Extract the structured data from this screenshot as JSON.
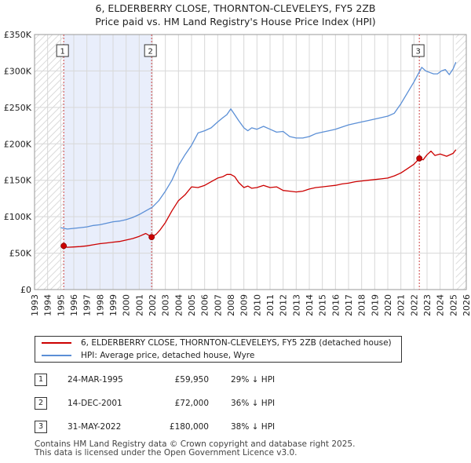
{
  "title_line1": "6, ELDERBERRY CLOSE, THORNTON-CLEVELEYS, FY5 2ZB",
  "title_line2": "Price paid vs. HM Land Registry's House Price Index (HPI)",
  "colors": {
    "property": "#cc0000",
    "hpi": "#5b8fd6",
    "hatch": "#cfcfcf",
    "shade": "#e9eefb",
    "grid": "#d8d8d8",
    "marker_line": "#cc4444"
  },
  "legend": {
    "property_label": "6, ELDERBERRY CLOSE, THORNTON-CLEVELEYS, FY5 2ZB (detached house)",
    "hpi_label": "HPI: Average price, detached house, Wyre"
  },
  "transactions": [
    {
      "num": "1",
      "date": "24-MAR-1995",
      "price": "£59,950",
      "delta": "29% ↓ HPI"
    },
    {
      "num": "2",
      "date": "14-DEC-2001",
      "price": "£72,000",
      "delta": "36% ↓ HPI"
    },
    {
      "num": "3",
      "date": "31-MAY-2022",
      "price": "£180,000",
      "delta": "38% ↓ HPI"
    }
  ],
  "footer_line1": "Contains HM Land Registry data © Crown copyright and database right 2025.",
  "footer_line2": "This data is licensed under the Open Government Licence v3.0.",
  "chart_data": {
    "type": "line",
    "title": "6, ELDERBERRY CLOSE, THORNTON-CLEVELEYS, FY5 2ZB — Price paid vs. HM Land Registry's House Price Index (HPI)",
    "xlabel": "",
    "ylabel": "",
    "xlim": [
      1993,
      2026
    ],
    "ylim": [
      0,
      350000
    ],
    "x_ticks": [
      1993,
      1994,
      1995,
      1996,
      1997,
      1998,
      1999,
      2000,
      2001,
      2002,
      2003,
      2004,
      2005,
      2006,
      2007,
      2008,
      2009,
      2010,
      2011,
      2012,
      2013,
      2014,
      2015,
      2016,
      2017,
      2018,
      2019,
      2020,
      2021,
      2022,
      2023,
      2024,
      2025,
      2026
    ],
    "y_ticks": [
      {
        "value": 0,
        "label": "£0"
      },
      {
        "value": 50000,
        "label": "£50K"
      },
      {
        "value": 100000,
        "label": "£100K"
      },
      {
        "value": 150000,
        "label": "£150K"
      },
      {
        "value": 200000,
        "label": "£200K"
      },
      {
        "value": 250000,
        "label": "£250K"
      },
      {
        "value": 300000,
        "label": "£300K"
      },
      {
        "value": 350000,
        "label": "£350K"
      }
    ],
    "hatched_ranges": [
      [
        1993,
        1995.23
      ],
      [
        2025.2,
        2026
      ]
    ],
    "shaded_ranges": [
      [
        1995.23,
        2001.95
      ]
    ],
    "series": [
      {
        "name": "6, ELDERBERRY CLOSE, THORNTON-CLEVELEYS, FY5 2ZB (detached house)",
        "color": "#cc0000",
        "x": [
          1995.23,
          1995.5,
          1996,
          1996.5,
          1997,
          1997.5,
          1998,
          1998.5,
          1999,
          1999.5,
          2000,
          2000.5,
          2001,
          2001.5,
          2001.95,
          2002.3,
          2002.6,
          2003,
          2003.5,
          2004,
          2004.5,
          2005,
          2005.5,
          2006,
          2006.5,
          2007,
          2007.4,
          2007.7,
          2008,
          2008.3,
          2008.6,
          2009,
          2009.3,
          2009.6,
          2010,
          2010.5,
          2011,
          2011.5,
          2012,
          2012.5,
          2013,
          2013.5,
          2014,
          2014.5,
          2015,
          2015.5,
          2016,
          2016.5,
          2017,
          2017.5,
          2018,
          2018.5,
          2019,
          2019.5,
          2020,
          2020.5,
          2021,
          2021.5,
          2022,
          2022.41,
          2022.7,
          2023,
          2023.3,
          2023.6,
          2024,
          2024.5,
          2025,
          2025.2
        ],
        "values": [
          59950,
          58000,
          58500,
          59000,
          60000,
          61500,
          63000,
          64000,
          65000,
          66000,
          68000,
          70000,
          73000,
          77000,
          72000,
          76000,
          82000,
          92000,
          108000,
          122000,
          130000,
          141000,
          140000,
          143000,
          148000,
          153000,
          155000,
          158000,
          158000,
          155000,
          147000,
          140000,
          142000,
          139000,
          140000,
          143000,
          140000,
          141000,
          136000,
          135000,
          134000,
          135000,
          138000,
          140000,
          141000,
          142000,
          143000,
          145000,
          146000,
          148000,
          149000,
          150000,
          151000,
          152000,
          153000,
          156000,
          160000,
          166000,
          172000,
          180000,
          178000,
          185000,
          190000,
          184000,
          186000,
          183000,
          187000,
          192000
        ]
      },
      {
        "name": "HPI: Average price, detached house, Wyre",
        "color": "#5b8fd6",
        "x": [
          1995,
          1995.5,
          1996,
          1996.5,
          1997,
          1997.5,
          1998,
          1998.5,
          1999,
          1999.5,
          2000,
          2000.5,
          2001,
          2001.5,
          2002,
          2002.5,
          2003,
          2003.5,
          2004,
          2004.5,
          2005,
          2005.5,
          2006,
          2006.5,
          2007,
          2007.4,
          2007.7,
          2008,
          2008.3,
          2008.6,
          2009,
          2009.3,
          2009.6,
          2010,
          2010.5,
          2011,
          2011.5,
          2012,
          2012.5,
          2013,
          2013.5,
          2014,
          2014.5,
          2015,
          2015.5,
          2016,
          2016.5,
          2017,
          2017.5,
          2018,
          2018.5,
          2019,
          2019.5,
          2020,
          2020.5,
          2021,
          2021.5,
          2022,
          2022.3,
          2022.6,
          2022.9,
          2023.2,
          2023.5,
          2023.8,
          2024.1,
          2024.4,
          2024.7,
          2025,
          2025.2
        ],
        "values": [
          85000,
          83000,
          84000,
          85000,
          86000,
          88000,
          89000,
          91000,
          93000,
          94000,
          96000,
          99000,
          103000,
          108000,
          113000,
          122000,
          135000,
          150000,
          170000,
          185000,
          198000,
          215000,
          218000,
          222000,
          230000,
          236000,
          240000,
          248000,
          240000,
          232000,
          222000,
          218000,
          222000,
          220000,
          224000,
          220000,
          216000,
          217000,
          210000,
          208000,
          208000,
          210000,
          214000,
          216000,
          218000,
          220000,
          223000,
          226000,
          228000,
          230000,
          232000,
          234000,
          236000,
          238000,
          242000,
          255000,
          270000,
          285000,
          295000,
          305000,
          300000,
          298000,
          296000,
          296000,
          300000,
          302000,
          295000,
          303000,
          312000
        ]
      }
    ],
    "annotations": [
      {
        "label": "1",
        "x": 1995.23,
        "y": 59950
      },
      {
        "label": "2",
        "x": 2001.95,
        "y": 72000
      },
      {
        "label": "3",
        "x": 2022.41,
        "y": 180000
      }
    ]
  }
}
